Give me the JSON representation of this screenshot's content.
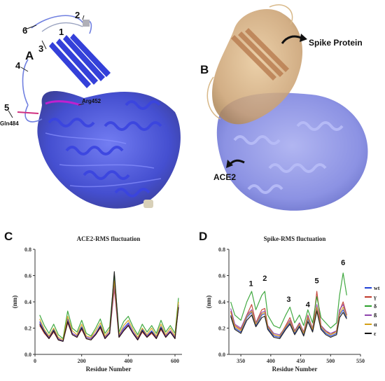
{
  "panel_a": {
    "label": "A",
    "region_numbers": [
      "1",
      "2",
      "3",
      "4",
      "5",
      "6"
    ],
    "residue_arg": "Arg452",
    "residue_gln": "Gln484"
  },
  "panel_b": {
    "label": "B",
    "spike_label": "Spike Protein",
    "ace2_label": "ACE2"
  },
  "chart_data": [
    {
      "panel": "C",
      "type": "line",
      "title": "ACE2-RMS fluctuation",
      "xlabel": "Residue Number",
      "ylabel": "(nm)",
      "xlim": [
        0,
        630
      ],
      "ylim": [
        0,
        0.8
      ],
      "xticks": [
        0,
        200,
        400,
        600
      ],
      "yticks": [
        0.0,
        0.2,
        0.4,
        0.6,
        0.8
      ],
      "x": [
        20,
        40,
        60,
        80,
        100,
        120,
        140,
        160,
        180,
        200,
        220,
        240,
        260,
        280,
        300,
        320,
        340,
        360,
        380,
        400,
        420,
        440,
        460,
        480,
        500,
        520,
        540,
        560,
        580,
        600,
        615
      ],
      "series": [
        {
          "color": "#1f3fd6",
          "values": [
            0.25,
            0.18,
            0.13,
            0.19,
            0.12,
            0.1,
            0.27,
            0.16,
            0.14,
            0.21,
            0.13,
            0.12,
            0.16,
            0.22,
            0.13,
            0.17,
            0.55,
            0.14,
            0.2,
            0.24,
            0.17,
            0.12,
            0.19,
            0.14,
            0.18,
            0.13,
            0.21,
            0.14,
            0.18,
            0.13,
            0.38
          ]
        },
        {
          "color": "#c0392b",
          "values": [
            0.22,
            0.16,
            0.12,
            0.17,
            0.11,
            0.1,
            0.24,
            0.15,
            0.13,
            0.19,
            0.12,
            0.11,
            0.15,
            0.2,
            0.12,
            0.16,
            0.5,
            0.13,
            0.18,
            0.22,
            0.16,
            0.11,
            0.17,
            0.13,
            0.16,
            0.12,
            0.19,
            0.13,
            0.17,
            0.12,
            0.36
          ]
        },
        {
          "color": "#2ca02c",
          "values": [
            0.3,
            0.22,
            0.16,
            0.23,
            0.15,
            0.12,
            0.33,
            0.2,
            0.17,
            0.26,
            0.16,
            0.14,
            0.2,
            0.27,
            0.16,
            0.21,
            0.6,
            0.17,
            0.25,
            0.29,
            0.21,
            0.15,
            0.23,
            0.17,
            0.22,
            0.16,
            0.26,
            0.17,
            0.22,
            0.16,
            0.43
          ]
        },
        {
          "color": "#8e44ad",
          "values": [
            0.24,
            0.17,
            0.13,
            0.18,
            0.12,
            0.1,
            0.26,
            0.16,
            0.14,
            0.2,
            0.13,
            0.12,
            0.16,
            0.21,
            0.13,
            0.17,
            0.52,
            0.14,
            0.19,
            0.23,
            0.17,
            0.12,
            0.18,
            0.14,
            0.17,
            0.13,
            0.2,
            0.14,
            0.18,
            0.13,
            0.37
          ]
        },
        {
          "color": "#d4a017",
          "values": [
            0.27,
            0.19,
            0.14,
            0.2,
            0.13,
            0.11,
            0.29,
            0.18,
            0.15,
            0.23,
            0.14,
            0.13,
            0.18,
            0.24,
            0.14,
            0.19,
            0.56,
            0.15,
            0.22,
            0.26,
            0.19,
            0.13,
            0.2,
            0.15,
            0.2,
            0.14,
            0.23,
            0.15,
            0.2,
            0.14,
            0.4
          ]
        },
        {
          "color": "#111111",
          "values": [
            0.23,
            0.17,
            0.12,
            0.18,
            0.11,
            0.1,
            0.25,
            0.15,
            0.13,
            0.2,
            0.12,
            0.11,
            0.15,
            0.21,
            0.12,
            0.16,
            0.63,
            0.13,
            0.18,
            0.22,
            0.16,
            0.11,
            0.18,
            0.13,
            0.17,
            0.12,
            0.2,
            0.13,
            0.17,
            0.12,
            0.36
          ]
        }
      ]
    },
    {
      "panel": "D",
      "type": "line",
      "title": "Spike-RMS fluctuation",
      "xlabel": "Residue Number",
      "ylabel": "(nm)",
      "xlim": [
        330,
        550
      ],
      "ylim": [
        0,
        0.8
      ],
      "xticks": [
        350,
        400,
        450,
        500,
        550
      ],
      "yticks": [
        0.0,
        0.2,
        0.4,
        0.6,
        0.8
      ],
      "peak_labels": [
        {
          "text": "1",
          "x": 367,
          "y": 0.5
        },
        {
          "text": "2",
          "x": 390,
          "y": 0.54
        },
        {
          "text": "3",
          "x": 430,
          "y": 0.38
        },
        {
          "text": "4",
          "x": 462,
          "y": 0.34
        },
        {
          "text": "5",
          "x": 477,
          "y": 0.52
        },
        {
          "text": "6",
          "x": 521,
          "y": 0.66
        }
      ],
      "x": [
        333,
        340,
        350,
        360,
        368,
        375,
        385,
        390,
        395,
        405,
        415,
        425,
        432,
        440,
        448,
        455,
        462,
        470,
        477,
        484,
        492,
        500,
        510,
        515,
        521,
        527
      ],
      "series": [
        {
          "name": "wt",
          "color": "#1f3fd6",
          "values": [
            0.3,
            0.2,
            0.17,
            0.28,
            0.32,
            0.22,
            0.3,
            0.31,
            0.2,
            0.14,
            0.13,
            0.2,
            0.24,
            0.16,
            0.22,
            0.15,
            0.27,
            0.18,
            0.35,
            0.2,
            0.16,
            0.14,
            0.16,
            0.3,
            0.34,
            0.28
          ]
        },
        {
          "name": "γ",
          "color": "#c0392b",
          "values": [
            0.33,
            0.22,
            0.19,
            0.3,
            0.38,
            0.24,
            0.34,
            0.35,
            0.22,
            0.15,
            0.14,
            0.22,
            0.28,
            0.18,
            0.24,
            0.17,
            0.3,
            0.19,
            0.48,
            0.22,
            0.18,
            0.15,
            0.18,
            0.33,
            0.4,
            0.3
          ]
        },
        {
          "name": "δ",
          "color": "#2ca02c",
          "values": [
            0.4,
            0.3,
            0.26,
            0.4,
            0.48,
            0.34,
            0.45,
            0.48,
            0.3,
            0.22,
            0.2,
            0.3,
            0.36,
            0.24,
            0.3,
            0.22,
            0.34,
            0.24,
            0.44,
            0.28,
            0.24,
            0.2,
            0.24,
            0.45,
            0.62,
            0.45
          ]
        },
        {
          "name": "ß",
          "color": "#8e44ad",
          "values": [
            0.35,
            0.23,
            0.2,
            0.3,
            0.34,
            0.24,
            0.32,
            0.33,
            0.22,
            0.16,
            0.15,
            0.21,
            0.26,
            0.18,
            0.24,
            0.17,
            0.29,
            0.2,
            0.38,
            0.22,
            0.18,
            0.16,
            0.18,
            0.34,
            0.38,
            0.3
          ]
        },
        {
          "name": "α",
          "color": "#d4a017",
          "values": [
            0.32,
            0.21,
            0.18,
            0.29,
            0.33,
            0.23,
            0.31,
            0.32,
            0.21,
            0.15,
            0.14,
            0.21,
            0.25,
            0.17,
            0.23,
            0.16,
            0.28,
            0.19,
            0.36,
            0.21,
            0.17,
            0.15,
            0.17,
            0.31,
            0.36,
            0.29
          ]
        },
        {
          "name": "ε",
          "color": "#111111",
          "values": [
            0.29,
            0.19,
            0.16,
            0.26,
            0.3,
            0.21,
            0.28,
            0.29,
            0.19,
            0.13,
            0.12,
            0.19,
            0.23,
            0.15,
            0.21,
            0.14,
            0.25,
            0.17,
            0.33,
            0.19,
            0.15,
            0.13,
            0.15,
            0.28,
            0.32,
            0.27
          ]
        }
      ]
    }
  ],
  "panel_c_label": "C",
  "panel_d_label": "D"
}
